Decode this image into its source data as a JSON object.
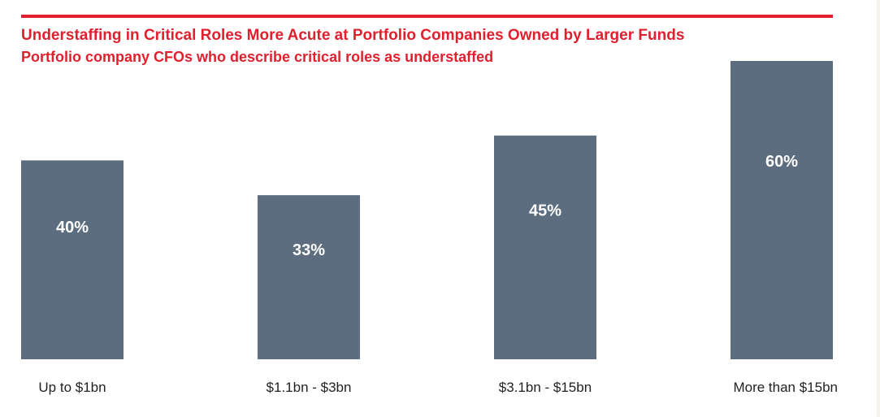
{
  "chart_data": {
    "type": "bar",
    "title": "Understaffing in Critical Roles More Acute at Portfolio Companies Owned by Larger Funds",
    "subtitle": "Portfolio company CFOs who describe critical roles as understaffed",
    "categories": [
      "Up to $1bn",
      "$1.1bn - $3bn",
      "$3.1bn - $15bn",
      "More than $15bn"
    ],
    "values": [
      40,
      33,
      45,
      60
    ],
    "value_labels": [
      "40%",
      "33%",
      "45%",
      "60%"
    ],
    "ylim": [
      0,
      60
    ],
    "grid": false,
    "colors": {
      "bar": "#5b6d7e",
      "accent": "#e0202e"
    }
  }
}
